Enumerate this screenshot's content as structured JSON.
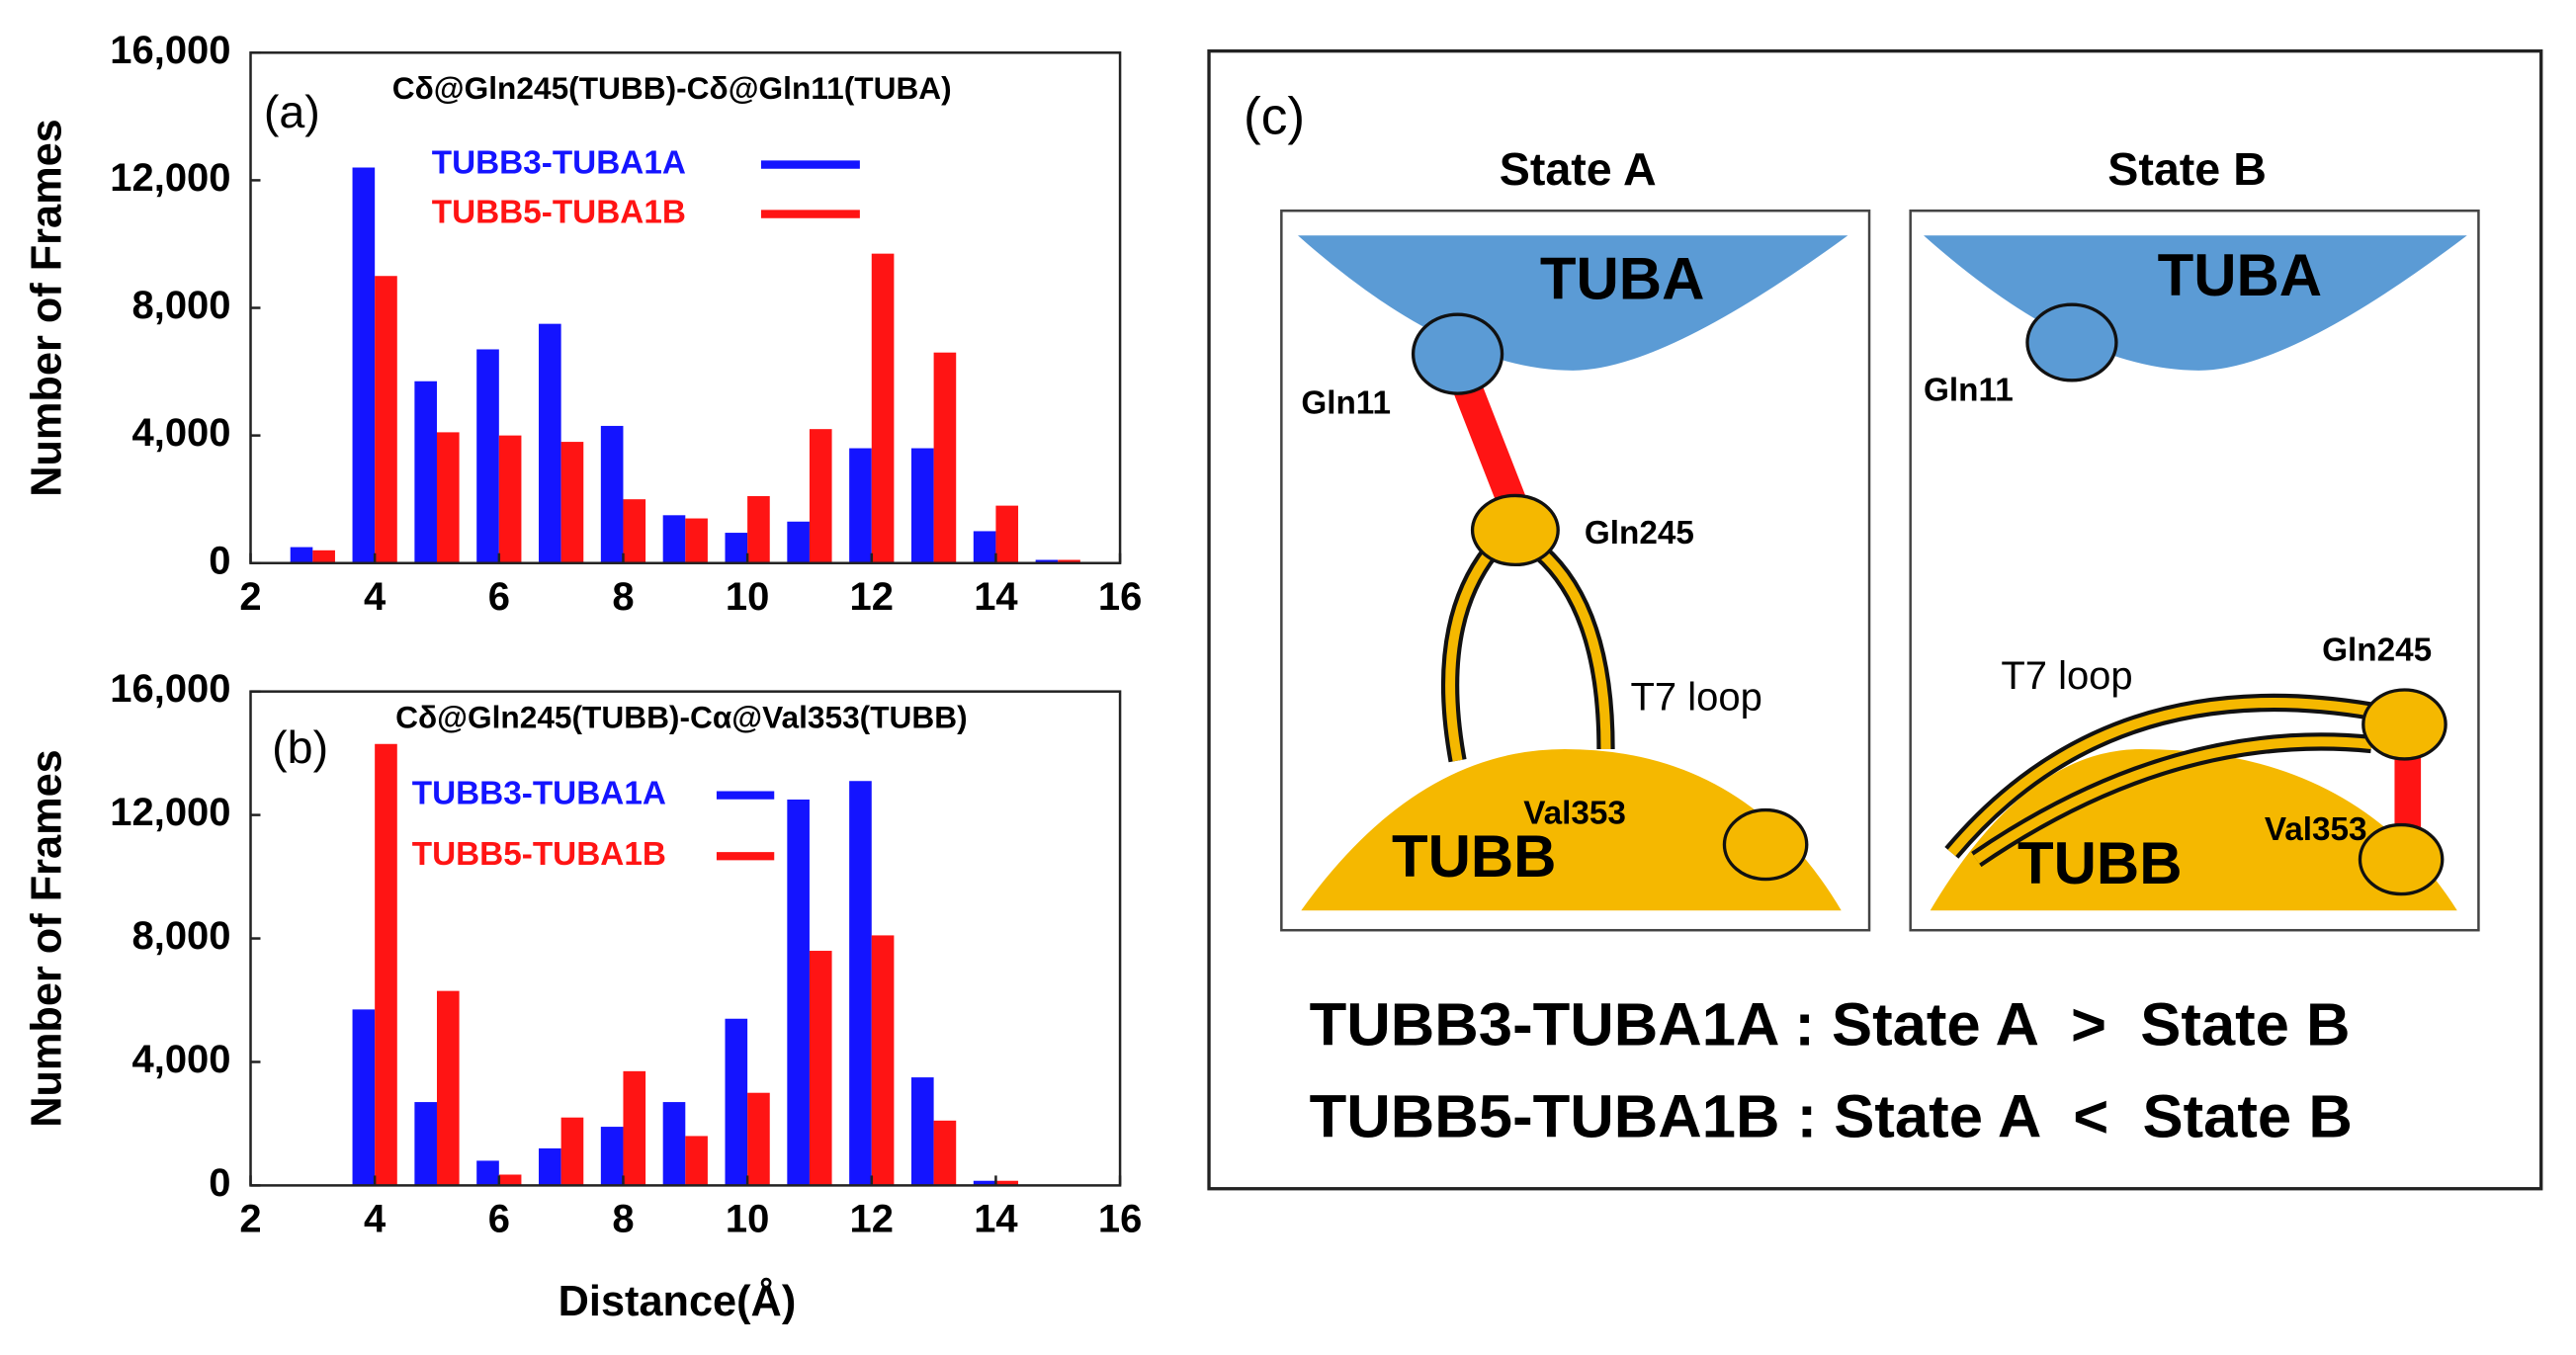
{
  "chart_data": [
    {
      "type": "bar",
      "title": "Cδ@Gln245(TUBB)-Cδ@Gln11(TUBA)",
      "panel_label": "(a)",
      "ylabel": "Number of Frames",
      "x": [
        3,
        4,
        5,
        6,
        7,
        8,
        9,
        10,
        11,
        12,
        13,
        14,
        15
      ],
      "series": [
        {
          "name": "TUBB3-TUBA1A",
          "color": "#1414ff",
          "values": [
            500,
            12400,
            5700,
            6700,
            7500,
            4300,
            1500,
            950,
            1300,
            3600,
            3600,
            1000,
            100
          ]
        },
        {
          "name": "TUBB5-TUBA1B",
          "color": "#ff1414",
          "values": [
            400,
            9000,
            4100,
            4000,
            3800,
            2000,
            1400,
            2100,
            4200,
            9700,
            6600,
            1800,
            100
          ]
        }
      ],
      "xlim": [
        2,
        16
      ],
      "xticks": [
        2,
        4,
        6,
        8,
        10,
        12,
        14,
        16
      ],
      "ylim": [
        0,
        16000
      ],
      "yticks": [
        0,
        {
          "value": 4000,
          "label": "4,000"
        },
        {
          "value": 8000,
          "label": "8,000"
        },
        {
          "value": 12000,
          "label": "12,000"
        },
        {
          "value": 16000,
          "label": "16,000"
        }
      ],
      "grid": false
    },
    {
      "type": "bar",
      "title": "Cδ@Gln245(TUBB)-Cα@Val353(TUBB)",
      "panel_label": "(b)",
      "ylabel": "Number of Frames",
      "xlabel": "Distance(Å)",
      "x": [
        4,
        5,
        6,
        7,
        8,
        9,
        10,
        11,
        12,
        13,
        14
      ],
      "series": [
        {
          "name": "TUBB3-TUBA1A",
          "color": "#1414ff",
          "values": [
            5700,
            2700,
            800,
            1200,
            1900,
            2700,
            5400,
            12500,
            13100,
            3500,
            150
          ]
        },
        {
          "name": "TUBB5-TUBA1B",
          "color": "#ff1414",
          "values": [
            14300,
            6300,
            350,
            2200,
            3700,
            1600,
            3000,
            7600,
            8100,
            2100,
            150
          ]
        }
      ],
      "xlim": [
        2,
        16
      ],
      "xticks": [
        2,
        4,
        6,
        8,
        10,
        12,
        14,
        16
      ],
      "ylim": [
        0,
        16000
      ],
      "yticks": [
        0,
        {
          "value": 4000,
          "label": "4,000"
        },
        {
          "value": 8000,
          "label": "8,000"
        },
        {
          "value": 12000,
          "label": "12,000"
        },
        {
          "value": 16000,
          "label": "16,000"
        }
      ],
      "grid": false
    }
  ],
  "diagram": {
    "panel_label": "(c)",
    "state_a": {
      "title": "State A",
      "tuba": "TUBA",
      "tubb": "TUBB",
      "gln11": "Gln11",
      "gln245": "Gln245",
      "loop": "T7 loop",
      "val353": "Val353"
    },
    "state_b": {
      "title": "State B",
      "tuba": "TUBA",
      "tubb": "TUBB",
      "gln11": "Gln11",
      "gln245": "Gln245",
      "loop": "T7 loop",
      "val353": "Val353"
    },
    "summary": [
      "TUBB3-TUBA1A : State A  >  State B",
      "TUBB5-TUBA1B : State A  <  State B"
    ]
  }
}
